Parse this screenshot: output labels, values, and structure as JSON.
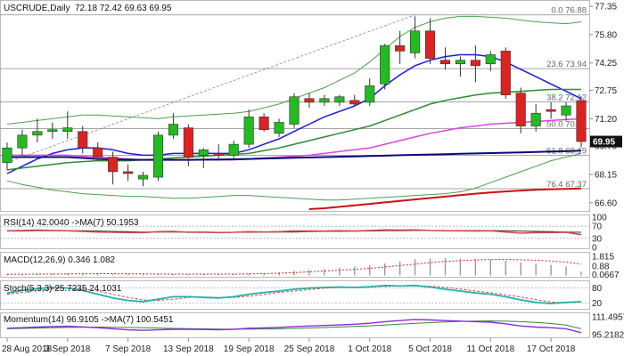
{
  "chart_data": {
    "type": "candlestick",
    "header": {
      "symbol": "USCRUDE,Daily",
      "ohlc": "72.18 72.42 69.63 69.95"
    },
    "last_price": "69.95",
    "price_axis": {
      "ylim": [
        66.3,
        77.5
      ],
      "ticks": [
        "77.35",
        "75.80",
        "74.25",
        "72.75",
        "71.20",
        "69.70",
        "68.15",
        "66.60"
      ]
    },
    "x_axis_labels": [
      {
        "label": "28 Aug 2018",
        "i": 0
      },
      {
        "label": "3 Sep 2018",
        "i": 4
      },
      {
        "label": "7 Sep 2018",
        "i": 8
      },
      {
        "label": "13 Sep 2018",
        "i": 12
      },
      {
        "label": "19 Sep 2018",
        "i": 16
      },
      {
        "label": "25 Sep 2018",
        "i": 20
      },
      {
        "label": "1 Oct 2018",
        "i": 24
      },
      {
        "label": "5 Oct 2018",
        "i": 28
      },
      {
        "label": "11 Oct 2018",
        "i": 32
      },
      {
        "label": "17 Oct 2018",
        "i": 36
      }
    ],
    "candles": [
      {
        "o": 68.8,
        "h": 69.9,
        "l": 68.4,
        "c": 69.6
      },
      {
        "o": 69.6,
        "h": 70.6,
        "l": 69.2,
        "c": 70.3
      },
      {
        "o": 70.3,
        "h": 71.2,
        "l": 69.9,
        "c": 70.5
      },
      {
        "o": 70.5,
        "h": 71.0,
        "l": 70.1,
        "c": 70.6
      },
      {
        "o": 70.5,
        "h": 71.6,
        "l": 70.1,
        "c": 70.7
      },
      {
        "o": 70.5,
        "h": 70.8,
        "l": 69.3,
        "c": 69.6
      },
      {
        "o": 69.6,
        "h": 69.9,
        "l": 68.9,
        "c": 69.1
      },
      {
        "o": 69.1,
        "h": 69.4,
        "l": 67.6,
        "c": 68.3
      },
      {
        "o": 68.3,
        "h": 68.7,
        "l": 67.8,
        "c": 68.2
      },
      {
        "o": 67.9,
        "h": 68.3,
        "l": 67.5,
        "c": 68.1
      },
      {
        "o": 68.0,
        "h": 70.5,
        "l": 67.8,
        "c": 70.3
      },
      {
        "o": 70.3,
        "h": 71.5,
        "l": 70.1,
        "c": 70.9
      },
      {
        "o": 70.7,
        "h": 70.9,
        "l": 68.6,
        "c": 69.1
      },
      {
        "o": 69.2,
        "h": 69.6,
        "l": 68.5,
        "c": 69.5
      },
      {
        "o": 69.3,
        "h": 69.8,
        "l": 68.9,
        "c": 69.2
      },
      {
        "o": 69.2,
        "h": 70.0,
        "l": 69.0,
        "c": 69.8
      },
      {
        "o": 69.8,
        "h": 71.7,
        "l": 69.6,
        "c": 71.3
      },
      {
        "o": 71.3,
        "h": 71.5,
        "l": 70.5,
        "c": 70.6
      },
      {
        "o": 70.4,
        "h": 71.2,
        "l": 70.2,
        "c": 71.0
      },
      {
        "o": 70.9,
        "h": 72.6,
        "l": 70.7,
        "c": 72.4
      },
      {
        "o": 72.3,
        "h": 72.6,
        "l": 71.8,
        "c": 72.1
      },
      {
        "o": 72.1,
        "h": 72.5,
        "l": 71.9,
        "c": 72.3
      },
      {
        "o": 72.1,
        "h": 72.5,
        "l": 71.9,
        "c": 72.4
      },
      {
        "o": 72.2,
        "h": 72.5,
        "l": 71.9,
        "c": 72.0
      },
      {
        "o": 72.1,
        "h": 73.4,
        "l": 71.9,
        "c": 73.0
      },
      {
        "o": 73.1,
        "h": 75.3,
        "l": 72.8,
        "c": 75.2
      },
      {
        "o": 75.2,
        "h": 76.0,
        "l": 74.2,
        "c": 74.9
      },
      {
        "o": 74.8,
        "h": 76.8,
        "l": 74.5,
        "c": 76.0
      },
      {
        "o": 76.0,
        "h": 76.7,
        "l": 74.2,
        "c": 74.5
      },
      {
        "o": 74.4,
        "h": 75.1,
        "l": 73.9,
        "c": 74.2
      },
      {
        "o": 74.2,
        "h": 74.6,
        "l": 73.5,
        "c": 74.4
      },
      {
        "o": 74.4,
        "h": 75.2,
        "l": 73.2,
        "c": 74.1
      },
      {
        "o": 74.2,
        "h": 74.9,
        "l": 73.8,
        "c": 74.7
      },
      {
        "o": 74.9,
        "h": 75.1,
        "l": 72.3,
        "c": 72.5
      },
      {
        "o": 72.6,
        "h": 72.9,
        "l": 70.4,
        "c": 70.8
      },
      {
        "o": 70.8,
        "h": 72.0,
        "l": 70.5,
        "c": 71.5
      },
      {
        "o": 71.7,
        "h": 72.1,
        "l": 71.2,
        "c": 71.6
      },
      {
        "o": 71.4,
        "h": 72.1,
        "l": 71.1,
        "c": 71.9
      },
      {
        "o": 72.18,
        "h": 72.42,
        "l": 69.63,
        "c": 69.95
      }
    ],
    "fib_levels": [
      {
        "label": "0.0 76.88",
        "value": 76.88
      },
      {
        "label": "23.6 73.94",
        "value": 73.94
      },
      {
        "label": "38.2 72.12",
        "value": 72.12
      },
      {
        "label": "50.0 70.66",
        "value": 70.66
      },
      {
        "label": "61.8 69.19",
        "value": 69.19
      },
      {
        "label": "76.4 67.37",
        "value": 67.37
      }
    ],
    "overlays": [
      {
        "name": "ma-blue",
        "color": "#1a1ae0",
        "values": [
          68.2,
          68.6,
          69.0,
          69.3,
          69.5,
          69.6,
          69.6,
          69.5,
          69.3,
          69.2,
          69.2,
          69.3,
          69.3,
          69.3,
          69.3,
          69.3,
          69.5,
          69.8,
          70.1,
          70.5,
          70.9,
          71.3,
          71.6,
          71.9,
          72.3,
          73.0,
          73.6,
          74.1,
          74.4,
          74.6,
          74.7,
          74.7,
          74.6,
          74.3,
          73.9,
          73.5,
          73.1,
          72.7,
          72.3
        ]
      },
      {
        "name": "ma-green",
        "color": "#2e8b2e",
        "values": [
          68.4,
          68.5,
          68.6,
          68.7,
          68.8,
          68.85,
          68.9,
          68.9,
          68.9,
          68.95,
          69.0,
          69.05,
          69.1,
          69.15,
          69.2,
          69.25,
          69.3,
          69.45,
          69.6,
          69.8,
          70.0,
          70.2,
          70.4,
          70.6,
          70.8,
          71.1,
          71.4,
          71.7,
          72.0,
          72.2,
          72.35,
          72.5,
          72.6,
          72.65,
          72.7,
          72.75,
          72.8,
          72.8,
          72.8
        ]
      },
      {
        "name": "ma-magenta",
        "color": "#dd44dd",
        "values": [
          69.2,
          69.2,
          69.2,
          69.2,
          69.2,
          69.15,
          69.1,
          69.05,
          69.0,
          68.95,
          68.95,
          68.95,
          68.95,
          68.95,
          68.95,
          68.95,
          69.0,
          69.05,
          69.1,
          69.15,
          69.2,
          69.3,
          69.4,
          69.5,
          69.6,
          69.8,
          70.0,
          70.2,
          70.4,
          70.55,
          70.7,
          70.8,
          70.9,
          70.95,
          71.0,
          71.05,
          71.1,
          71.15,
          71.2
        ]
      },
      {
        "name": "ma-navy",
        "color": "#0a0a7a",
        "values": [
          69.1,
          69.1,
          69.1,
          69.1,
          69.1,
          69.05,
          69.0,
          68.98,
          68.96,
          68.95,
          68.95,
          68.95,
          68.95,
          68.96,
          68.97,
          68.98,
          69.0,
          69.02,
          69.04,
          69.06,
          69.08,
          69.1,
          69.12,
          69.14,
          69.16,
          69.18,
          69.2,
          69.22,
          69.24,
          69.26,
          69.28,
          69.3,
          69.32,
          69.34,
          69.36,
          69.38,
          69.4,
          69.42,
          69.45
        ]
      },
      {
        "name": "bb-upper",
        "color": "#4aa04a",
        "values": [
          70.9,
          71.0,
          71.1,
          71.2,
          71.3,
          71.4,
          71.4,
          71.35,
          71.3,
          71.25,
          71.2,
          71.3,
          71.35,
          71.4,
          71.45,
          71.5,
          71.6,
          71.8,
          72.0,
          72.3,
          72.6,
          72.9,
          73.3,
          73.7,
          74.3,
          75.0,
          75.7,
          76.2,
          76.5,
          76.7,
          76.8,
          76.8,
          76.75,
          76.7,
          76.6,
          76.5,
          76.45,
          76.4,
          76.5
        ]
      },
      {
        "name": "bb-lower",
        "color": "#4aa04a",
        "values": [
          67.8,
          67.6,
          67.45,
          67.3,
          67.2,
          67.1,
          67.05,
          67.0,
          66.95,
          66.95,
          66.9,
          66.85,
          66.85,
          66.9,
          66.95,
          67.0,
          67.0,
          66.95,
          66.9,
          66.85,
          66.8,
          66.75,
          66.75,
          66.8,
          66.85,
          66.9,
          66.95,
          67.0,
          67.05,
          67.1,
          67.2,
          67.4,
          67.7,
          68.0,
          68.3,
          68.6,
          68.9,
          69.1,
          69.3
        ]
      },
      {
        "name": "ma-red",
        "color": "#cc1111",
        "values": [
          null,
          null,
          null,
          null,
          null,
          null,
          null,
          null,
          null,
          null,
          null,
          null,
          null,
          null,
          null,
          null,
          null,
          null,
          null,
          null,
          66.25,
          66.3,
          66.38,
          66.46,
          66.54,
          66.62,
          66.7,
          66.78,
          66.86,
          66.94,
          67.02,
          67.1,
          67.16,
          67.22,
          67.27,
          67.31,
          67.34,
          67.36,
          67.38
        ]
      }
    ],
    "trendline": {
      "from": {
        "i": 0,
        "v": 68.8
      },
      "to": {
        "i": 27,
        "v": 76.88
      }
    },
    "panels": {
      "rsi": {
        "header": "RSI(14) 42.0040  ->MA(7) 50.1953",
        "ticks": [
          "100",
          "70",
          "30",
          "0"
        ],
        "ylim": [
          0,
          100
        ],
        "levels": [
          70,
          30
        ],
        "rsi": [
          55,
          56,
          57,
          56,
          55,
          53,
          51,
          50,
          49,
          49,
          52,
          53,
          50,
          50,
          49,
          50,
          52,
          51,
          52,
          54,
          54,
          54,
          55,
          54,
          56,
          58,
          57,
          58,
          56,
          55,
          55,
          54,
          55,
          51,
          47,
          49,
          49,
          50,
          42
        ],
        "ma": [
          54,
          54,
          55,
          55,
          55,
          55,
          54,
          53,
          52,
          51,
          51,
          51,
          51,
          51,
          50,
          50,
          50,
          51,
          51,
          51,
          52,
          53,
          53,
          54,
          54,
          55,
          55,
          56,
          56,
          56,
          56,
          56,
          56,
          55,
          54,
          53,
          52,
          51,
          50
        ]
      },
      "macd": {
        "header": "MACD(12,26,9) 0.346 1.082",
        "ticks": [
          "1.815",
          "0.88",
          "0.0667"
        ],
        "ylim": [
          -0.05,
          2.0
        ],
        "hist": [
          0.1,
          0.12,
          0.14,
          0.16,
          0.18,
          0.18,
          0.17,
          0.15,
          0.12,
          0.1,
          0.1,
          0.12,
          0.12,
          0.11,
          0.11,
          0.12,
          0.18,
          0.22,
          0.3,
          0.42,
          0.52,
          0.62,
          0.72,
          0.82,
          0.95,
          1.15,
          1.35,
          1.55,
          1.62,
          1.65,
          1.6,
          1.55,
          1.5,
          1.4,
          1.25,
          1.12,
          1.0,
          0.85,
          0.35
        ],
        "signal": [
          0.1,
          0.11,
          0.12,
          0.13,
          0.14,
          0.15,
          0.16,
          0.16,
          0.15,
          0.14,
          0.13,
          0.12,
          0.12,
          0.12,
          0.12,
          0.12,
          0.14,
          0.17,
          0.21,
          0.27,
          0.34,
          0.42,
          0.5,
          0.58,
          0.68,
          0.8,
          0.94,
          1.08,
          1.22,
          1.33,
          1.42,
          1.48,
          1.52,
          1.53,
          1.5,
          1.45,
          1.38,
          1.27,
          1.08
        ]
      },
      "stoch": {
        "header": "Stoch(5,3,3) 25.7235 24.1031",
        "ticks": [
          "80",
          "20"
        ],
        "ylim": [
          0,
          100
        ],
        "levels": [
          80,
          20
        ],
        "k": [
          60,
          70,
          78,
          82,
          80,
          70,
          55,
          40,
          30,
          25,
          35,
          45,
          45,
          42,
          40,
          45,
          55,
          62,
          68,
          75,
          80,
          82,
          84,
          82,
          85,
          90,
          88,
          90,
          84,
          75,
          68,
          60,
          55,
          45,
          32,
          22,
          18,
          22,
          25
        ],
        "d": [
          55,
          62,
          70,
          76,
          80,
          77,
          68,
          55,
          42,
          32,
          30,
          35,
          42,
          44,
          42,
          42,
          47,
          54,
          62,
          68,
          74,
          79,
          82,
          83,
          84,
          86,
          88,
          89,
          87,
          83,
          76,
          68,
          61,
          53,
          44,
          33,
          24,
          21,
          24
        ]
      },
      "momentum": {
        "header": "Momentum(14) 96.9105  ->MA(7) 100.5451",
        "ticks": [
          "111.4957",
          "95.2182"
        ],
        "ylim": [
          93.5,
          113.0
        ],
        "mom": [
          101,
          101.5,
          102,
          102.5,
          102.8,
          102.2,
          101.5,
          100.5,
          99.5,
          99,
          99.5,
          100,
          100,
          99.8,
          99.6,
          100,
          101,
          101.3,
          101.8,
          102.5,
          103,
          103.5,
          104,
          104.6,
          105.5,
          107,
          108,
          109,
          108.5,
          108,
          107.5,
          107,
          106.5,
          105,
          103,
          102,
          101.5,
          100.5,
          96.9
        ],
        "ma": [
          100.5,
          100.8,
          101.1,
          101.4,
          101.7,
          101.9,
          102,
          101.9,
          101.7,
          101.4,
          101.1,
          100.8,
          100.6,
          100.4,
          100.2,
          100.1,
          100.2,
          100.3,
          100.5,
          100.8,
          101.2,
          101.6,
          102.1,
          102.6,
          103.2,
          103.9,
          104.6,
          105.4,
          106.1,
          106.7,
          107.2,
          107.5,
          107.6,
          107.4,
          107,
          106.3,
          105.3,
          103.9,
          100.5
        ]
      }
    },
    "colors": {
      "bull": "#22bb22",
      "bear": "#dd2222",
      "wick": "#333333",
      "rsi": "#d14a4a",
      "rsi_ma": "#333333",
      "macd_hist": "#999999",
      "macd_signal": "#dd2222",
      "stoch_k": "#20b2aa",
      "stoch_d": "#dd4444",
      "mom": "#8a2be2",
      "mom_ma": "#2e8b2e",
      "last_price_bg": "#111111"
    }
  }
}
